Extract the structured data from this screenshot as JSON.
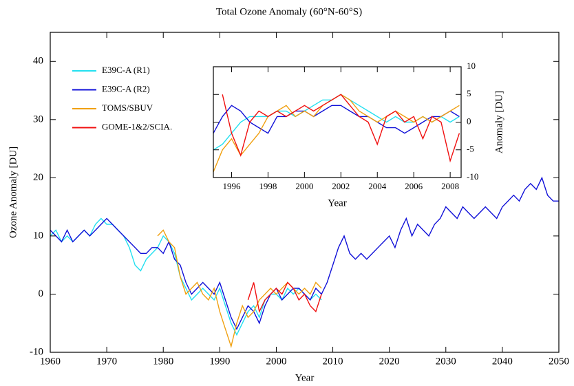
{
  "chart_data": [
    {
      "type": "line",
      "title": "Total Ozone Anomaly (60°N-60°S)",
      "xlabel": "Year",
      "ylabel": "Ozone Anomaly [DU]",
      "xlim": [
        1960,
        2050
      ],
      "xticks": [
        1960,
        1970,
        1980,
        1990,
        2000,
        2010,
        2020,
        2030,
        2040,
        2050
      ],
      "ylim": [
        -10,
        45
      ],
      "yticks": [
        -10,
        0,
        10,
        20,
        30,
        40
      ],
      "legend": "upper left",
      "series": [
        {
          "name": "E39C-A (R1)",
          "color": "#22e0f0",
          "x": [
            1960,
            1961,
            1962,
            1963,
            1964,
            1965,
            1966,
            1967,
            1968,
            1969,
            1970,
            1971,
            1972,
            1973,
            1974,
            1975,
            1976,
            1977,
            1978,
            1979,
            1980,
            1981,
            1982,
            1983,
            1984,
            1985,
            1986,
            1987,
            1988,
            1989,
            1990,
            1991,
            1992,
            1993,
            1994,
            1995,
            1996,
            1997,
            1998,
            1999,
            2000,
            2001,
            2002,
            2003,
            2004,
            2005,
            2006,
            2007,
            2008
          ],
          "values": [
            10,
            11,
            9,
            10,
            9,
            10,
            11,
            10,
            12,
            13,
            12,
            12,
            11,
            10,
            8,
            5,
            4,
            6,
            7,
            8,
            10,
            9,
            7,
            3,
            1,
            -1,
            0,
            1,
            0,
            -1,
            1,
            -2,
            -5,
            -7,
            -5,
            -3,
            -2,
            -4,
            -1,
            0,
            0,
            -1,
            1,
            0,
            1,
            0,
            -1,
            0,
            -1
          ]
        },
        {
          "name": "E39C-A (R2)",
          "color": "#1010d8",
          "x": [
            1960,
            1961,
            1962,
            1963,
            1964,
            1965,
            1966,
            1967,
            1968,
            1969,
            1970,
            1971,
            1972,
            1973,
            1974,
            1975,
            1976,
            1977,
            1978,
            1979,
            1980,
            1981,
            1982,
            1983,
            1984,
            1985,
            1986,
            1987,
            1988,
            1989,
            1990,
            1991,
            1992,
            1993,
            1994,
            1995,
            1996,
            1997,
            1998,
            1999,
            2000,
            2001,
            2002,
            2003,
            2004,
            2005,
            2006,
            2007,
            2008,
            2009,
            2010,
            2011,
            2012,
            2013,
            2014,
            2015,
            2016,
            2017,
            2018,
            2019,
            2020,
            2021,
            2022,
            2023,
            2024,
            2025,
            2026,
            2027,
            2028,
            2029,
            2030,
            2031,
            2032,
            2033,
            2034,
            2035,
            2036,
            2037,
            2038,
            2039,
            2040,
            2041,
            2042,
            2043,
            2044,
            2045,
            2046,
            2047,
            2048,
            2049,
            2050
          ],
          "values": [
            11,
            10,
            9,
            11,
            9,
            10,
            11,
            10,
            11,
            12,
            13,
            12,
            11,
            10,
            9,
            8,
            7,
            7,
            8,
            8,
            7,
            9,
            6,
            5,
            2,
            0,
            1,
            2,
            1,
            0,
            2,
            -1,
            -4,
            -6,
            -4,
            -2,
            -3,
            -5,
            -2,
            0,
            1,
            -1,
            0,
            1,
            1,
            0,
            -1,
            1,
            0,
            2,
            5,
            8,
            10,
            7,
            6,
            7,
            6,
            7,
            8,
            9,
            10,
            8,
            11,
            13,
            10,
            12,
            11,
            10,
            12,
            13,
            15,
            14,
            13,
            15,
            14,
            13,
            14,
            15,
            14,
            13,
            15,
            16,
            17,
            16,
            18,
            19,
            18,
            20,
            17,
            16,
            16
          ]
        },
        {
          "name": "TOMS/SBUV",
          "color": "#f0a010",
          "x": [
            1979,
            1980,
            1981,
            1982,
            1983,
            1984,
            1985,
            1986,
            1987,
            1988,
            1989,
            1990,
            1991,
            1992,
            1993,
            1994,
            1995,
            1996,
            1997,
            1998,
            1999,
            2000,
            2001,
            2002,
            2003,
            2004,
            2005,
            2006,
            2007,
            2008
          ],
          "values": [
            10,
            11,
            9,
            8,
            3,
            0,
            1,
            2,
            0,
            -1,
            1,
            -3,
            -6,
            -9,
            -5,
            -2,
            -4,
            -3,
            -1,
            0,
            1,
            0,
            1,
            2,
            1,
            0,
            1,
            0,
            2,
            1
          ]
        },
        {
          "name": "GOME-1&2/SCIA.",
          "color": "#f01010",
          "x": [
            1995,
            1996,
            1997,
            1998,
            1999,
            2000,
            2001,
            2002,
            2003,
            2004,
            2005,
            2006,
            2007,
            2008
          ],
          "values": [
            -1,
            2,
            -3,
            -1,
            0,
            1,
            0,
            2,
            1,
            -1,
            0,
            -2,
            -3,
            0
          ]
        }
      ]
    },
    {
      "type": "line",
      "xlabel": "Year",
      "ylabel": "Anomaly [DU]",
      "y_axis_position": "right",
      "xlim": [
        1995,
        2008.6
      ],
      "xticks": [
        1996,
        1998,
        2000,
        2002,
        2004,
        2006,
        2008
      ],
      "ylim": [
        -10,
        10
      ],
      "yticks": [
        -10,
        -5,
        0,
        5,
        10
      ],
      "x": [
        1995,
        1995.5,
        1996,
        1996.5,
        1997,
        1997.5,
        1998,
        1998.5,
        1999,
        1999.5,
        2000,
        2000.5,
        2001,
        2001.5,
        2002,
        2002.5,
        2003,
        2003.5,
        2004,
        2004.5,
        2005,
        2005.5,
        2006,
        2006.5,
        2007,
        2007.5,
        2008,
        2008.5
      ],
      "series": [
        {
          "color": "#22e0f0",
          "values": [
            -5,
            -4,
            -2,
            0,
            1,
            1,
            1,
            2,
            2,
            1,
            2,
            3,
            4,
            4,
            5,
            4,
            3,
            2,
            1,
            0,
            1,
            0,
            0,
            1,
            0,
            1,
            0,
            1
          ]
        },
        {
          "color": "#1010d8",
          "values": [
            -2,
            1,
            3,
            2,
            0,
            -1,
            -2,
            1,
            1,
            2,
            2,
            1,
            2,
            3,
            3,
            2,
            1,
            1,
            0,
            -1,
            -1,
            -2,
            -1,
            0,
            1,
            1,
            2,
            1
          ]
        },
        {
          "color": "#f0a010",
          "values": [
            -9,
            -5,
            -3,
            -6,
            -4,
            -2,
            1,
            2,
            3,
            1,
            2,
            1,
            3,
            4,
            5,
            4,
            2,
            1,
            0,
            1,
            2,
            1,
            0,
            1,
            0,
            1,
            2,
            3
          ]
        },
        {
          "color": "#f01010",
          "values": [
            null,
            5,
            -2,
            -6,
            0,
            2,
            1,
            2,
            1,
            2,
            3,
            2,
            3,
            4,
            5,
            3,
            1,
            0,
            -4,
            1,
            2,
            0,
            1,
            -3,
            1,
            0,
            -7,
            -2
          ]
        }
      ]
    }
  ]
}
